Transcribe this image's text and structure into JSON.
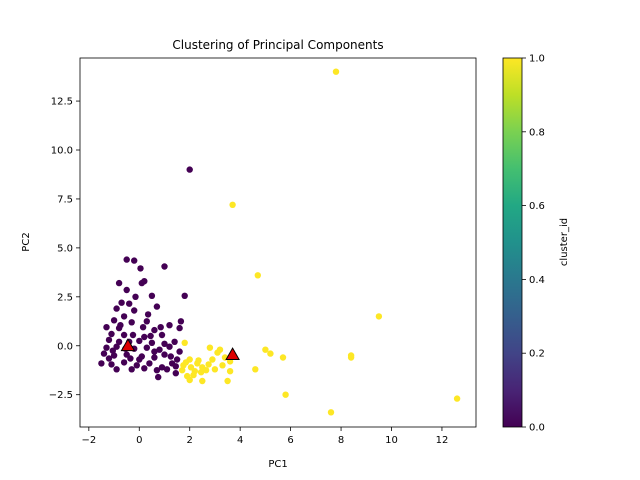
{
  "chart_data": {
    "type": "scatter",
    "title": "Clustering of Principal Components",
    "xlabel": "PC1",
    "ylabel": "PC2",
    "xlim": [
      -2.35,
      13.35
    ],
    "ylim": [
      -4.15,
      14.7
    ],
    "xticks": [
      -2,
      0,
      2,
      4,
      6,
      8,
      10,
      12
    ],
    "yticks": [
      -2.5,
      0.0,
      2.5,
      5.0,
      7.5,
      10.0,
      12.5
    ],
    "xtick_labels": [
      "−2",
      "0",
      "2",
      "4",
      "6",
      "8",
      "10",
      "12"
    ],
    "ytick_labels": [
      "−2.5",
      "0.0",
      "2.5",
      "5.0",
      "7.5",
      "10.0",
      "12.5"
    ],
    "grid": false,
    "colorbar": {
      "label": "cluster_id",
      "range": [
        0.0,
        1.0
      ],
      "ticks": [
        0.0,
        0.2,
        0.4,
        0.6,
        0.8,
        1.0
      ],
      "tick_labels": [
        "0.0",
        "0.2",
        "0.4",
        "0.6",
        "0.8",
        "1.0"
      ],
      "colormap": "viridis"
    },
    "series": [
      {
        "cluster_id": 0,
        "color": "#440154",
        "points": [
          [
            2.0,
            9.0
          ],
          [
            -0.5,
            4.4
          ],
          [
            -0.2,
            4.35
          ],
          [
            0.05,
            3.95
          ],
          [
            1.0,
            4.05
          ],
          [
            -0.8,
            3.2
          ],
          [
            0.1,
            3.2
          ],
          [
            0.2,
            3.3
          ],
          [
            -0.5,
            2.85
          ],
          [
            0.5,
            2.55
          ],
          [
            1.8,
            2.55
          ],
          [
            -0.7,
            2.2
          ],
          [
            -0.4,
            2.15
          ],
          [
            0.7,
            2.0
          ],
          [
            -0.9,
            1.9
          ],
          [
            -0.2,
            1.8
          ],
          [
            1.2,
            1.05
          ],
          [
            -0.6,
            1.5
          ],
          [
            -1.0,
            1.3
          ],
          [
            -0.3,
            1.2
          ],
          [
            0.3,
            1.25
          ],
          [
            1.65,
            1.25
          ],
          [
            -1.3,
            0.95
          ],
          [
            -0.8,
            0.9
          ],
          [
            0.6,
            0.8
          ],
          [
            1.6,
            0.9
          ],
          [
            -1.1,
            0.6
          ],
          [
            -0.6,
            0.55
          ],
          [
            0.2,
            0.45
          ],
          [
            0.9,
            0.55
          ],
          [
            -1.2,
            0.3
          ],
          [
            -0.4,
            0.2
          ],
          [
            0.0,
            0.25
          ],
          [
            0.5,
            0.15
          ],
          [
            1.4,
            0.2
          ],
          [
            -1.3,
            -0.1
          ],
          [
            -0.9,
            -0.05
          ],
          [
            -0.2,
            -0.15
          ],
          [
            0.3,
            -0.1
          ],
          [
            0.8,
            -0.2
          ],
          [
            1.2,
            -0.05
          ],
          [
            1.6,
            -0.3
          ],
          [
            -1.4,
            -0.4
          ],
          [
            -1.0,
            -0.5
          ],
          [
            -0.5,
            -0.45
          ],
          [
            0.1,
            -0.55
          ],
          [
            0.6,
            -0.6
          ],
          [
            1.0,
            -0.45
          ],
          [
            1.5,
            -0.7
          ],
          [
            -1.5,
            -0.9
          ],
          [
            -1.1,
            -0.95
          ],
          [
            -0.6,
            -0.85
          ],
          [
            -0.1,
            -1.0
          ],
          [
            0.4,
            -0.9
          ],
          [
            0.9,
            -1.1
          ],
          [
            1.3,
            -0.9
          ],
          [
            -0.9,
            -1.2
          ],
          [
            -0.3,
            -1.2
          ],
          [
            0.2,
            -1.15
          ],
          [
            0.7,
            -1.25
          ],
          [
            1.1,
            -1.2
          ],
          [
            1.45,
            -1.05
          ],
          [
            0.75,
            -1.6
          ],
          [
            1.45,
            -1.4
          ],
          [
            -0.8,
            0.2
          ],
          [
            -0.55,
            -0.15
          ],
          [
            -0.25,
            0.55
          ],
          [
            0.0,
            -0.7
          ],
          [
            0.45,
            0.5
          ],
          [
            -1.05,
            -0.25
          ],
          [
            1.0,
            0.1
          ],
          [
            0.15,
            0.95
          ],
          [
            -0.35,
            -0.65
          ],
          [
            1.25,
            -0.55
          ],
          [
            -0.75,
            1.05
          ],
          [
            0.35,
            1.6
          ],
          [
            -0.15,
            2.5
          ],
          [
            0.85,
            0.95
          ],
          [
            -1.2,
            -0.65
          ],
          [
            0.6,
            -0.3
          ]
        ]
      },
      {
        "cluster_id": 1,
        "color": "#fde725",
        "points": [
          [
            7.8,
            14.0
          ],
          [
            3.7,
            7.2
          ],
          [
            4.7,
            3.6
          ],
          [
            9.5,
            1.5
          ],
          [
            1.8,
            0.15
          ],
          [
            5.0,
            -0.2
          ],
          [
            5.2,
            -0.4
          ],
          [
            5.7,
            -0.6
          ],
          [
            8.4,
            -0.5
          ],
          [
            8.4,
            -0.6
          ],
          [
            4.6,
            -1.2
          ],
          [
            5.8,
            -2.5
          ],
          [
            7.6,
            -3.4
          ],
          [
            12.6,
            -2.7
          ],
          [
            2.8,
            -0.1
          ],
          [
            3.2,
            -0.2
          ],
          [
            3.1,
            -0.35
          ],
          [
            2.9,
            -0.7
          ],
          [
            3.6,
            -0.8
          ],
          [
            3.3,
            -1.0
          ],
          [
            3.0,
            -1.2
          ],
          [
            3.6,
            -1.3
          ],
          [
            2.0,
            -0.7
          ],
          [
            2.3,
            -0.9
          ],
          [
            2.5,
            -1.1
          ],
          [
            2.2,
            -1.3
          ],
          [
            1.9,
            -1.55
          ],
          [
            2.0,
            -1.75
          ],
          [
            2.5,
            -1.8
          ],
          [
            3.5,
            -1.8
          ],
          [
            1.75,
            -1.0
          ],
          [
            2.65,
            -1.25
          ],
          [
            2.35,
            -0.75
          ],
          [
            1.85,
            -0.85
          ],
          [
            2.75,
            -0.95
          ],
          [
            2.05,
            -1.1
          ],
          [
            3.4,
            -0.6
          ],
          [
            2.15,
            -1.5
          ],
          [
            2.45,
            -1.35
          ],
          [
            1.7,
            -1.25
          ]
        ]
      }
    ],
    "centroids": [
      {
        "x": -0.45,
        "y": 0.0,
        "color": "#dd0000"
      },
      {
        "x": 3.7,
        "y": -0.45,
        "color": "#dd0000"
      }
    ]
  }
}
